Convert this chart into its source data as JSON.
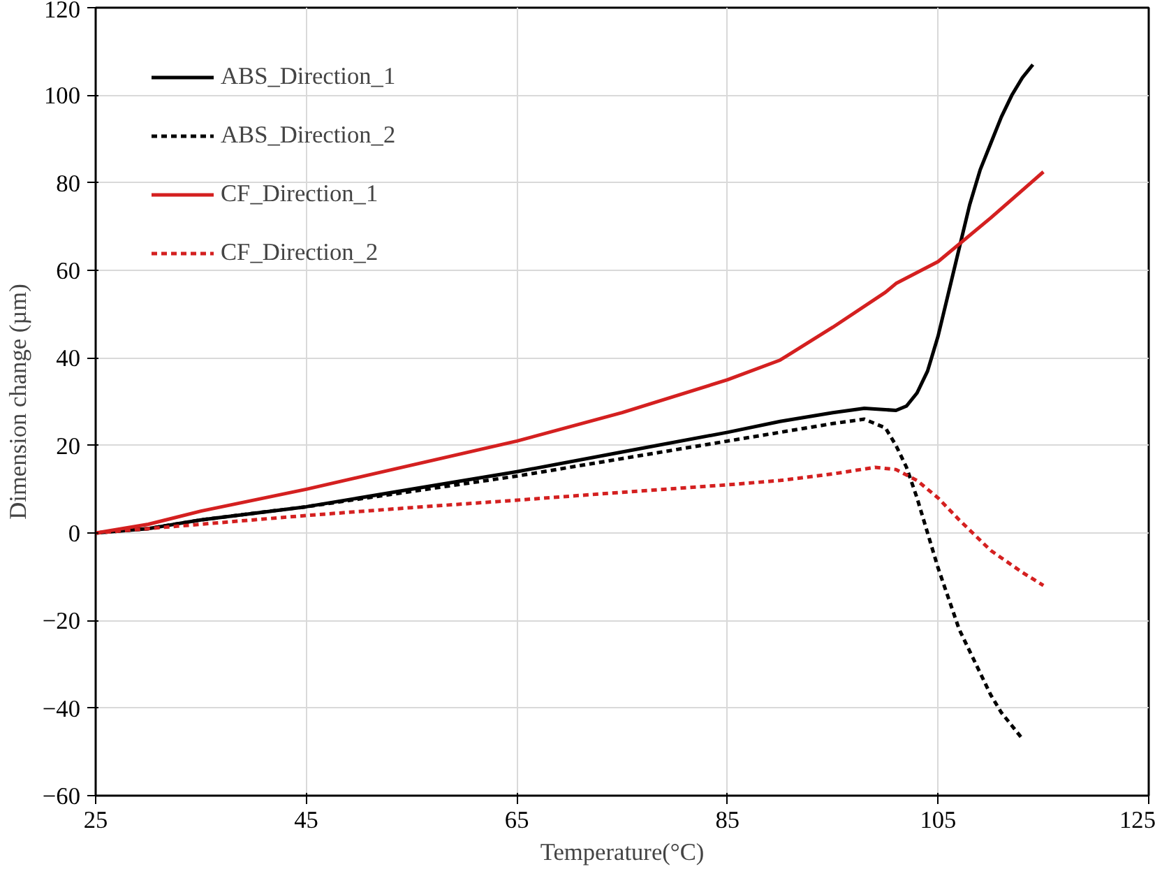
{
  "chart_data": {
    "type": "line",
    "xlabel": "Temperature(°C)",
    "ylabel": "Dimension change (µm)",
    "xlim": [
      25,
      125
    ],
    "xticks": [
      25,
      45,
      65,
      85,
      105,
      125
    ],
    "ylim": [
      -60,
      120
    ],
    "yticks": [
      -60,
      -40,
      -20,
      0,
      20,
      40,
      60,
      80,
      100,
      120
    ],
    "grid": true,
    "legend": "top left",
    "series": [
      {
        "name": "ABS_Direction_1",
        "color": "#000000",
        "line_style": "solid",
        "x": [
          25,
          30,
          35,
          45,
          55,
          65,
          75,
          85,
          90,
          95,
          98,
          101,
          102,
          103,
          104,
          105,
          106,
          107,
          108,
          109,
          110,
          111,
          112,
          113,
          114
        ],
        "values": [
          0,
          1,
          3,
          6,
          10,
          14,
          18.5,
          23,
          25.5,
          27.5,
          28.5,
          28,
          29,
          32,
          37,
          45,
          55,
          65,
          75,
          83,
          89,
          95,
          100,
          104,
          107
        ]
      },
      {
        "name": "ABS_Direction_2",
        "color": "#000000",
        "line_style": "dashed",
        "x": [
          25,
          30,
          35,
          45,
          55,
          65,
          75,
          85,
          90,
          95,
          98,
          100,
          101,
          102,
          103,
          104,
          105,
          106,
          107,
          108,
          109,
          110,
          111,
          112,
          113
        ],
        "values": [
          0,
          1,
          3,
          6,
          9.5,
          13,
          17,
          21,
          23,
          25,
          26,
          24,
          20,
          15,
          8,
          0,
          -8,
          -15,
          -22,
          -27,
          -32,
          -37,
          -41,
          -44,
          -47
        ]
      },
      {
        "name": "CF_Direction_1",
        "color": "#d42020",
        "line_style": "solid",
        "x": [
          25,
          30,
          35,
          45,
          55,
          65,
          75,
          85,
          90,
          95,
          100,
          101,
          105,
          110,
          115
        ],
        "values": [
          0,
          2,
          5,
          10,
          15.5,
          21,
          27.5,
          35,
          39.5,
          47,
          55,
          57,
          62,
          72,
          82.5
        ]
      },
      {
        "name": "CF_Direction_2",
        "color": "#d42020",
        "line_style": "dashed",
        "x": [
          25,
          30,
          35,
          45,
          55,
          65,
          75,
          85,
          90,
          95,
          99,
          101,
          103,
          104,
          105,
          107,
          110,
          113,
          115
        ],
        "values": [
          0,
          1,
          2,
          4,
          5.8,
          7.5,
          9.3,
          11,
          12,
          13.5,
          15,
          14.5,
          12,
          10,
          8,
          3,
          -4,
          -9,
          -12
        ]
      }
    ]
  }
}
